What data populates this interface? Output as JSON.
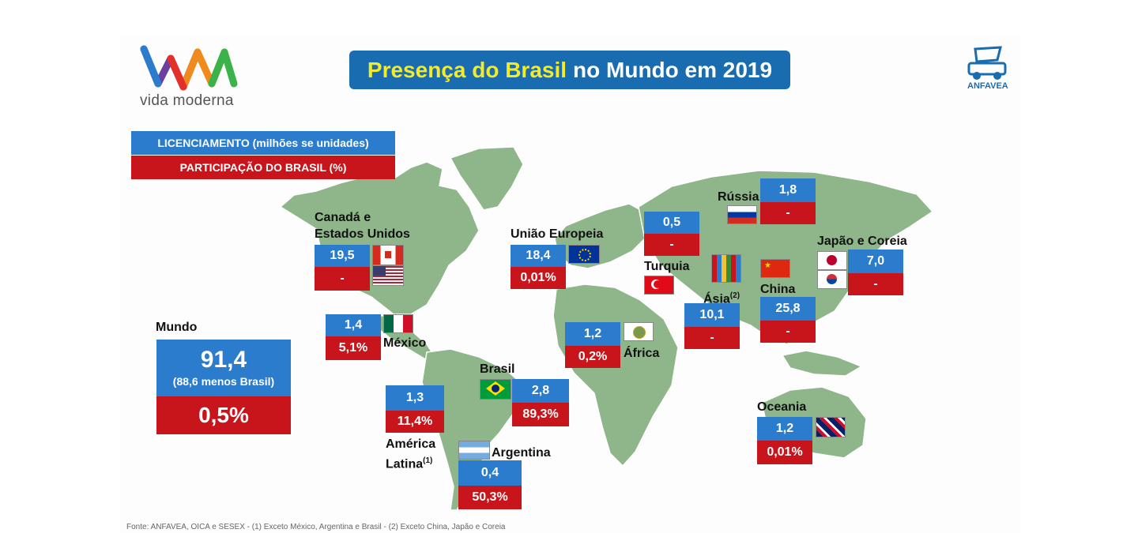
{
  "header": {
    "logo_text": "vida moderna",
    "title_highlight": "Presença do Brasil",
    "title_rest": "no Mundo em 2019",
    "anfavea_label": "ANFAVEA"
  },
  "legend": {
    "licensing": "LICENCIAMENTO (milhões se unidades)",
    "share": "PARTICIPAÇÃO DO BRASIL (%)"
  },
  "world": {
    "label": "Mundo",
    "licensing": "91,4",
    "note": "(88,6 menos Brasil)",
    "share": "0,5%"
  },
  "regions": {
    "canada_us": {
      "label_line1": "Canadá e",
      "label_line2": "Estados Unidos",
      "licensing": "19,5",
      "share": "-"
    },
    "mexico": {
      "label": "México",
      "licensing": "1,4",
      "share": "5,1%"
    },
    "latin_america": {
      "label_line1": "América",
      "label_line2": "Latina",
      "footnote": "(1)",
      "licensing": "1,3",
      "share": "11,4%"
    },
    "brazil": {
      "label": "Brasil",
      "licensing": "2,8",
      "share": "89,3%"
    },
    "argentina": {
      "label": "Argentina",
      "licensing": "0,4",
      "share": "50,3%"
    },
    "eu": {
      "label": "União Europeia",
      "licensing": "18,4",
      "share": "0,01%"
    },
    "turkey": {
      "label": "Turquia",
      "licensing": "0,5",
      "share": "-"
    },
    "africa": {
      "label": "África",
      "licensing": "1,2",
      "share": "0,2%"
    },
    "russia": {
      "label": "Rússia",
      "licensing": "1,8",
      "share": "-"
    },
    "asia": {
      "label": "Ásia",
      "footnote": "(2)",
      "licensing": "10,1",
      "share": "-"
    },
    "china": {
      "label": "China",
      "licensing": "25,8",
      "share": "-"
    },
    "japan_korea": {
      "label": "Japão e Coreia",
      "licensing": "7,0",
      "share": "-"
    },
    "oceania": {
      "label": "Oceania",
      "licensing": "1,2",
      "share": "0,01%"
    }
  },
  "footer": "Fonte: ANFAVEA, OICA e SESEX - (1) Exceto México, Argentina e Brasil - (2) Exceto China, Japão e Coreia",
  "colors": {
    "title_bg": "#1a6cb0",
    "title_highlight": "#f2ea2a",
    "licensing_bg": "#2b7ccc",
    "share_bg": "#c8151b",
    "land": "#8fb58a"
  },
  "icons": [
    "logo-vm",
    "anfavea-car-icon",
    "flag-canada",
    "flag-usa",
    "flag-mexico",
    "flag-brazil",
    "flag-argentina",
    "flag-eu",
    "flag-turkey",
    "flag-africa",
    "flag-russia",
    "flag-asia",
    "flag-china",
    "flag-japan",
    "flag-korea",
    "flag-oceania"
  ]
}
